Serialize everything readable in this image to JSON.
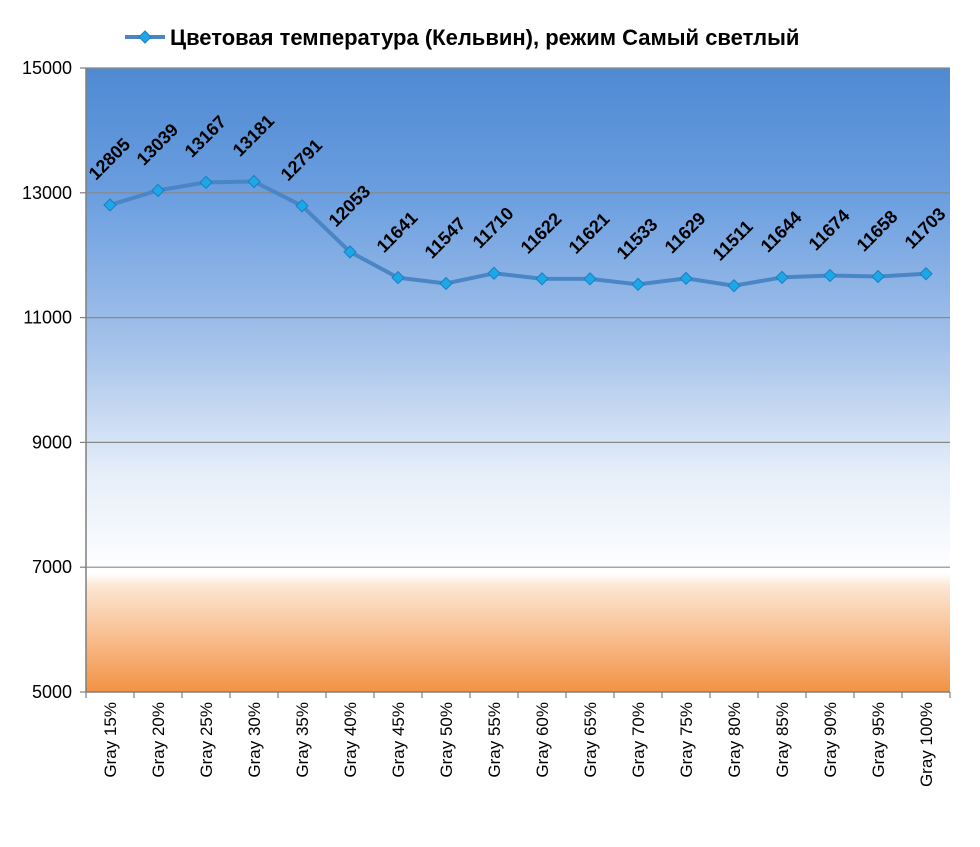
{
  "chart_data": {
    "type": "line",
    "legend_position": "top",
    "grid": true,
    "categories": [
      "Gray 15%",
      "Gray 20%",
      "Gray 25%",
      "Gray 30%",
      "Gray 35%",
      "Gray 40%",
      "Gray 45%",
      "Gray 50%",
      "Gray 55%",
      "Gray 60%",
      "Gray 65%",
      "Gray 70%",
      "Gray 75%",
      "Gray 80%",
      "Gray 85%",
      "Gray 90%",
      "Gray 95%",
      "Gray 100%"
    ],
    "series": [
      {
        "name": "Цветовая температура (Кельвин), режим Самый светлый",
        "values": [
          12805,
          13039,
          13167,
          13181,
          12791,
          12053,
          11641,
          11547,
          11710,
          11622,
          11621,
          11533,
          11629,
          11511,
          11644,
          11674,
          11658,
          11703
        ]
      }
    ],
    "ylim": [
      5000,
      15000
    ],
    "yticks": [
      5000,
      7000,
      9000,
      11000,
      13000,
      15000
    ],
    "colors": {
      "line": "#4a86c5",
      "marker": "#1ea7e8",
      "grid": "#888888"
    }
  }
}
